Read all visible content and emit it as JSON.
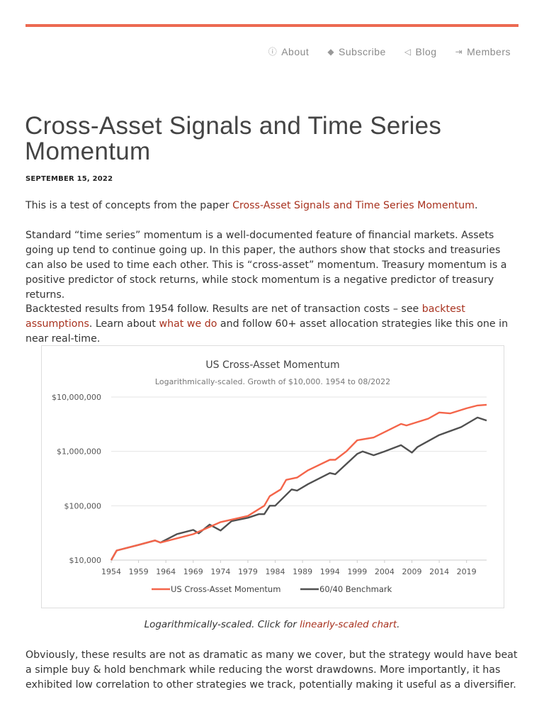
{
  "nav": [
    {
      "icon": "info-circle-icon",
      "glyph": "ⓘ",
      "label": "About"
    },
    {
      "icon": "tag-icon",
      "glyph": "◆",
      "label": "Subscribe"
    },
    {
      "icon": "bullhorn-icon",
      "glyph": "◁",
      "label": "Blog"
    },
    {
      "icon": "sign-in-icon",
      "glyph": "⇥",
      "label": "Members"
    }
  ],
  "accent_color": "#ec6a52",
  "link_color": "#a8321f",
  "post": {
    "title": "Cross-Asset Signals and Time Series Momentum",
    "date": "SEPTEMBER 15, 2022",
    "p1_before": "This is a test of concepts from the paper ",
    "p1_link": "Cross-Asset Signals and Time Series Momentum",
    "p1_after": ".",
    "p2": "Standard “time series” momentum is a well-documented feature of financial markets. Assets going up tend to continue going up. In this paper, the authors show that stocks and treasuries can also be used to time each other. This is “cross-asset” momentum. Treasury momentum is a positive predictor of stock returns, while stock momentum is a negative predictor of treasury returns.",
    "p3_a": "Backtested results from 1954 follow. Results are net of transaction costs – see ",
    "p3_link1": "backtest assumptions",
    "p3_b": ". Learn about ",
    "p3_link2": "what we do",
    "p3_c": " and follow 60+ asset allocation strategies like this one in near real-time.",
    "caption_before": "Logarithmically-scaled. Click for ",
    "caption_link": "linearly-scaled chart",
    "caption_after": ".",
    "p4": "Obviously, these results are not as dramatic as many we cover, but the strategy would have beat a simple buy & hold benchmark while reducing the worst drawdowns. More importantly, it has exhibited low correlation to other strategies we track, potentially making it useful as a diversifier."
  },
  "chart_data": {
    "type": "line",
    "title": "US Cross-Asset Momentum",
    "subtitle": "Logarithmically-scaled. Growth of $10,000. 1954 to 08/2022",
    "y_scale": "log",
    "ylim": [
      10000,
      10000000
    ],
    "xlim": [
      1954,
      2022.67
    ],
    "y_ticks": [
      10000,
      100000,
      1000000,
      10000000
    ],
    "y_tick_labels": [
      "$10,000",
      "$100,000",
      "$1,000,000",
      "$10,000,000"
    ],
    "x_ticks": [
      1954,
      1959,
      1964,
      1969,
      1974,
      1979,
      1984,
      1989,
      1994,
      1999,
      2004,
      2009,
      2014,
      2019
    ],
    "x_tick_labels": [
      "1954",
      "1959",
      "1964",
      "1969",
      "1974",
      "1979",
      "1984",
      "1989",
      "1994",
      "1999",
      "2004",
      "2009",
      "2014",
      "2019"
    ],
    "grid": "horizontal",
    "legend": "bottom",
    "series": [
      {
        "name": "US Cross-Asset Momentum",
        "color": "#f4654a",
        "x": [
          1954,
          1955,
          1959,
          1962,
          1963,
          1969,
          1974,
          1979,
          1982,
          1983,
          1985,
          1986,
          1988,
          1990,
          1994,
          1995,
          1997,
          1999,
          2002,
          2007,
          2008,
          2012,
          2014,
          2016,
          2019,
          2021,
          2022.67
        ],
        "y": [
          10000,
          15000,
          19000,
          23000,
          21000,
          30000,
          50000,
          65000,
          100000,
          150000,
          200000,
          300000,
          330000,
          450000,
          700000,
          700000,
          1000000,
          1600000,
          1800000,
          3200000,
          3000000,
          4000000,
          5200000,
          5000000,
          6200000,
          7000000,
          7200000
        ]
      },
      {
        "name": "60/40 Benchmark",
        "color": "#505050",
        "x": [
          1954,
          1955,
          1959,
          1962,
          1963,
          1966,
          1969,
          1970,
          1972,
          1974,
          1976,
          1979,
          1981,
          1982,
          1983,
          1984,
          1987,
          1988,
          1990,
          1994,
          1995,
          1999,
          2000,
          2002,
          2004,
          2007,
          2009,
          2010,
          2014,
          2018,
          2021,
          2022.67
        ],
        "y": [
          10000,
          15000,
          19000,
          23000,
          21000,
          30000,
          36000,
          31000,
          45000,
          35000,
          52000,
          60000,
          70000,
          70000,
          100000,
          100000,
          200000,
          190000,
          250000,
          400000,
          380000,
          900000,
          1000000,
          850000,
          1000000,
          1300000,
          950000,
          1200000,
          2000000,
          2800000,
          4200000,
          3700000
        ]
      }
    ]
  }
}
